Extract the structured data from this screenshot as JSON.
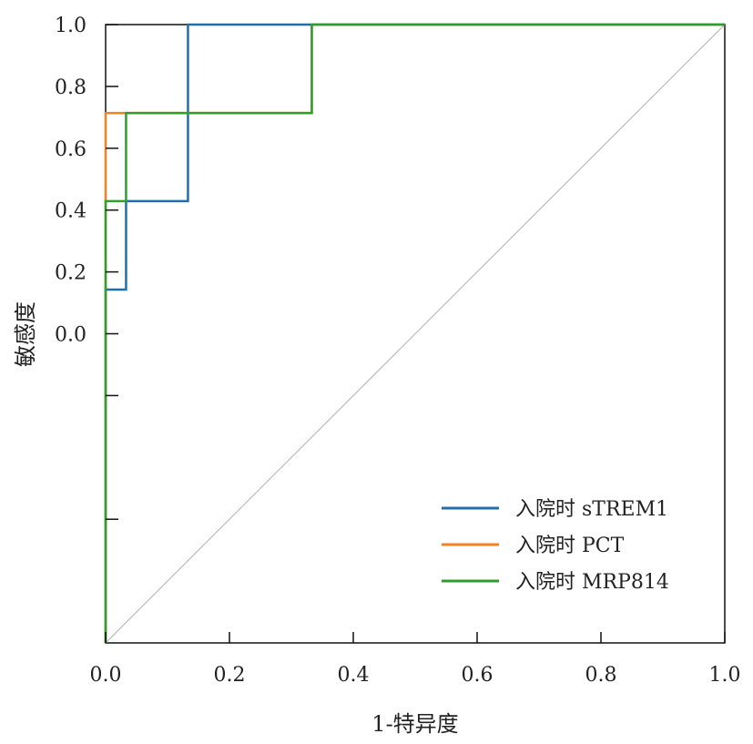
{
  "chart_data": {
    "type": "line",
    "title": "",
    "xlabel": "1-特异度",
    "ylabel": "敏感度",
    "xlim": [
      0,
      1
    ],
    "ylim": [
      -1,
      1
    ],
    "x_ticks": [
      {
        "value": 0,
        "label": "0.0"
      },
      {
        "value": 0.2,
        "label": "0.2"
      },
      {
        "value": 0.4,
        "label": "0.4"
      },
      {
        "value": 0.6,
        "label": "0.6"
      },
      {
        "value": 0.8,
        "label": "0.8"
      },
      {
        "value": 1.0,
        "label": "1.0"
      }
    ],
    "y_ticks": [
      {
        "value": 1.0,
        "label": "1.0"
      },
      {
        "value": 0.8,
        "label": "0.8"
      },
      {
        "value": 0.6,
        "label": "0.6"
      },
      {
        "value": 0.4,
        "label": "0.4"
      },
      {
        "value": 0.2,
        "label": "0.2"
      },
      {
        "value": 0.0,
        "label": "0.0"
      },
      {
        "value": -0.2,
        "label": ""
      },
      {
        "value": -0.6,
        "label": ""
      }
    ],
    "grid": false,
    "legend_position": "bottom-right",
    "reference_line": {
      "x": [
        0,
        1
      ],
      "y": [
        -1,
        1
      ],
      "color": "#b0b0b0"
    },
    "series": [
      {
        "name": "入院时 sTREM1",
        "color": "#1f6fb0",
        "x": [
          0,
          0,
          0.033,
          0.033,
          0.133,
          0.133,
          1
        ],
        "y": [
          -1,
          0.143,
          0.143,
          0.429,
          0.429,
          1,
          1
        ]
      },
      {
        "name": "入院时 PCT",
        "color": "#f5821f",
        "x": [
          0,
          0,
          0.033,
          0.333,
          0.333,
          1
        ],
        "y": [
          -1,
          0.714,
          0.714,
          0.714,
          1,
          1
        ]
      },
      {
        "name": "入院时 MRP814",
        "color": "#2ca02c",
        "x": [
          0,
          0,
          0.033,
          0.033,
          0.333,
          0.333,
          1
        ],
        "y": [
          -1,
          0.429,
          0.429,
          0.714,
          0.714,
          1,
          1
        ]
      }
    ]
  }
}
